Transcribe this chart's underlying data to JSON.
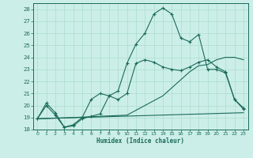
{
  "xlabel": "Humidex (Indice chaleur)",
  "xlim": [
    -0.5,
    23.5
  ],
  "ylim": [
    18,
    28.5
  ],
  "xticks": [
    0,
    1,
    2,
    3,
    4,
    5,
    6,
    7,
    8,
    9,
    10,
    11,
    12,
    13,
    14,
    15,
    16,
    17,
    18,
    19,
    20,
    21,
    22,
    23
  ],
  "yticks": [
    18,
    19,
    20,
    21,
    22,
    23,
    24,
    25,
    26,
    27,
    28
  ],
  "bg_color": "#cceee8",
  "grid_color": "#aaddcc",
  "line_color": "#1a6b5a",
  "curve1_x": [
    0,
    1,
    2,
    3,
    4,
    5,
    6,
    7,
    8,
    9,
    10,
    11,
    12,
    13,
    14,
    15,
    16,
    17,
    18,
    19,
    20,
    21,
    22,
    23
  ],
  "curve1_y": [
    18.9,
    20.2,
    19.4,
    18.2,
    18.3,
    18.9,
    19.1,
    19.3,
    20.8,
    21.2,
    23.5,
    25.1,
    26.0,
    27.6,
    28.1,
    27.6,
    25.6,
    25.3,
    25.9,
    23.0,
    23.0,
    22.7,
    20.5,
    19.7
  ],
  "curve2_x": [
    0,
    1,
    2,
    3,
    4,
    5,
    6,
    7,
    8,
    9,
    10,
    11,
    12,
    13,
    14,
    15,
    16,
    17,
    18,
    19,
    20,
    21,
    22,
    23
  ],
  "curve2_y": [
    18.9,
    20.0,
    19.2,
    18.2,
    18.4,
    19.0,
    20.5,
    21.0,
    20.8,
    20.5,
    21.0,
    23.5,
    23.8,
    23.6,
    23.2,
    23.0,
    22.9,
    23.2,
    23.6,
    23.8,
    23.2,
    22.8,
    20.5,
    19.8
  ],
  "curve3_x": [
    0,
    23
  ],
  "curve3_y": [
    18.9,
    19.4
  ],
  "curve4_x": [
    0,
    4,
    10,
    14,
    17,
    18,
    19,
    20,
    21,
    22,
    23
  ],
  "curve4_y": [
    18.9,
    19.0,
    19.2,
    20.8,
    22.8,
    23.3,
    23.4,
    23.8,
    24.0,
    24.0,
    23.8
  ]
}
